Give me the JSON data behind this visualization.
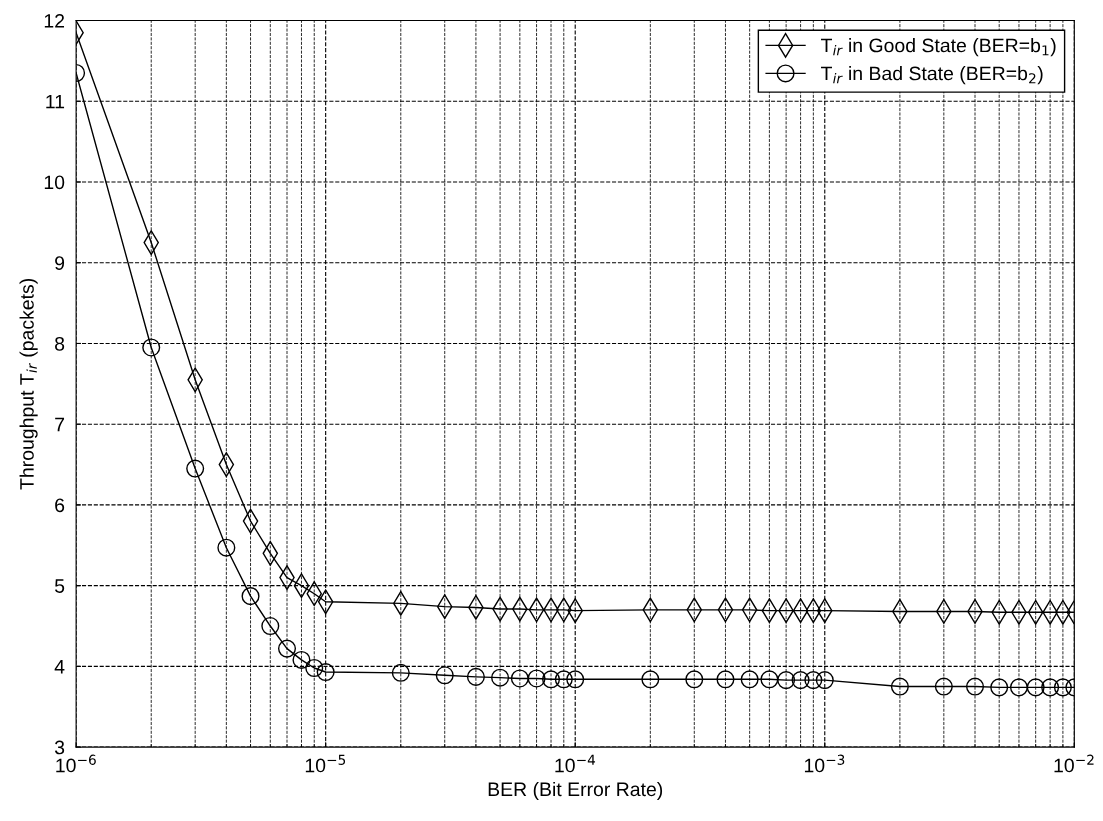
{
  "chart_data": {
    "type": "line",
    "xlabel": "BER (Bit Error Rate)",
    "ylabel": "Throughput T$_{ir}$ (packets)",
    "x": [
      1e-06,
      2e-06,
      3e-06,
      4e-06,
      5e-06,
      6e-06,
      7e-06,
      8e-06,
      9e-06,
      1e-05,
      2e-05,
      3e-05,
      4e-05,
      5e-05,
      6e-05,
      7e-05,
      8e-05,
      9e-05,
      0.0001,
      0.0002,
      0.0003,
      0.0004,
      0.0005,
      0.0006,
      0.0007,
      0.0008,
      0.0009,
      0.001,
      0.002,
      0.003,
      0.004,
      0.005,
      0.006,
      0.007,
      0.008,
      0.009,
      0.01
    ],
    "series": [
      {
        "name": "T$_{ir}$ in Good State (BER=b$_{1}$)",
        "color": "#000000",
        "marker": "diamond",
        "values": [
          11.85,
          9.25,
          7.55,
          6.5,
          5.8,
          5.4,
          5.1,
          5.0,
          4.9,
          4.8,
          4.78,
          4.74,
          4.73,
          4.71,
          4.71,
          4.7,
          4.7,
          4.7,
          4.69,
          4.7,
          4.7,
          4.7,
          4.7,
          4.69,
          4.69,
          4.69,
          4.69,
          4.69,
          4.68,
          4.68,
          4.68,
          4.67,
          4.67,
          4.67,
          4.67,
          4.67,
          4.67
        ]
      },
      {
        "name": "T$_{ir}$ in Bad State (BER=b$_{2}$)",
        "color": "#000000",
        "marker": "circle",
        "values": [
          11.35,
          7.95,
          6.45,
          5.47,
          4.87,
          4.5,
          4.22,
          4.08,
          3.98,
          3.93,
          3.92,
          3.89,
          3.87,
          3.86,
          3.85,
          3.85,
          3.84,
          3.84,
          3.84,
          3.84,
          3.84,
          3.84,
          3.84,
          3.84,
          3.83,
          3.83,
          3.83,
          3.83,
          3.75,
          3.75,
          3.75,
          3.74,
          3.74,
          3.74,
          3.74,
          3.74,
          3.74
        ]
      }
    ],
    "log": "x",
    "xlim": [
      1e-06,
      0.01
    ],
    "xticks": [
      {
        "value": 1e-06,
        "label": "10$^{−6}$"
      },
      {
        "value": 1e-05,
        "label": "10$^{−5}$"
      },
      {
        "value": 0.0001,
        "label": "10$^{−4}$"
      },
      {
        "value": 0.001,
        "label": "10$^{−3}$"
      },
      {
        "value": 0.01,
        "label": "10$^{−2}$"
      }
    ],
    "ylim": [
      3,
      12
    ],
    "yticks": [
      3,
      4,
      5,
      6,
      7,
      8,
      9,
      10,
      11,
      12
    ],
    "grid": true,
    "legend": "top right",
    "line_style": "solid"
  }
}
